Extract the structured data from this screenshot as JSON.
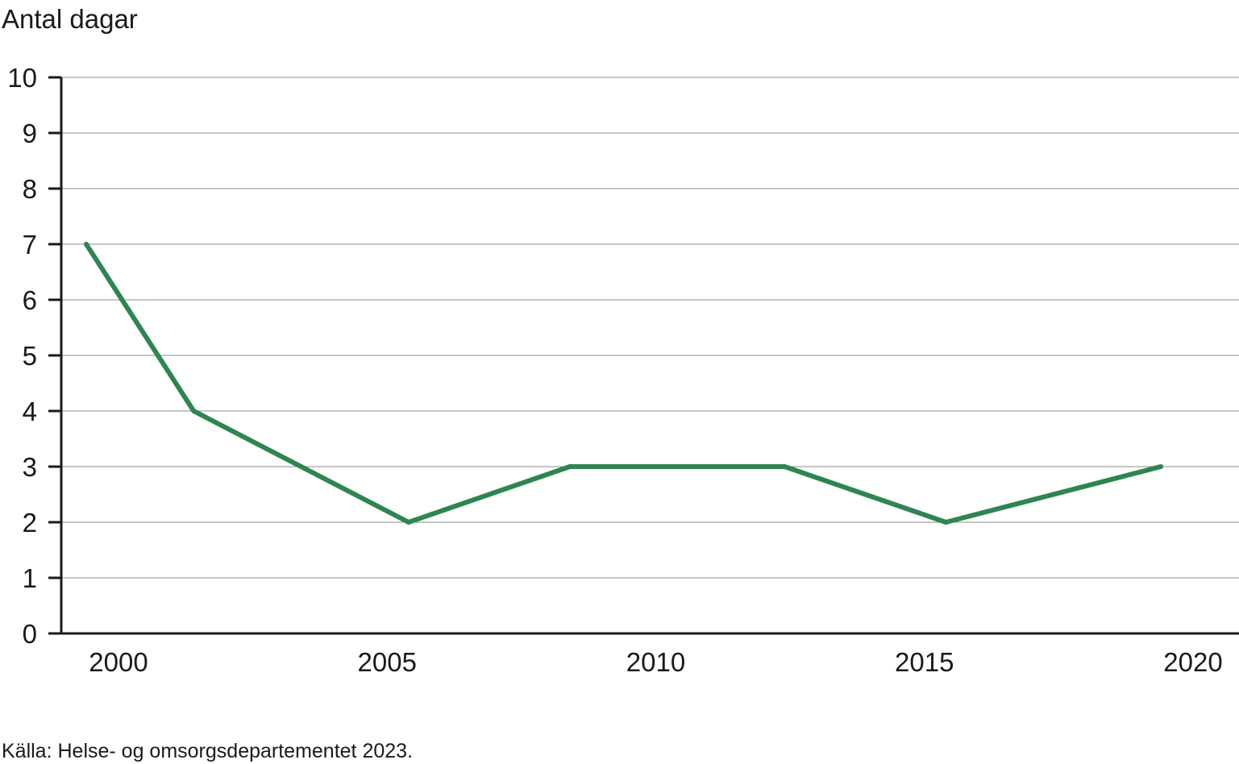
{
  "chart_data": {
    "type": "line",
    "ylabel": "Antal dagar",
    "xlabel": "",
    "ylim": [
      0,
      10
    ],
    "yticks": [
      "0",
      "1",
      "2",
      "3",
      "4",
      "5",
      "6",
      "7",
      "8",
      "9",
      "10"
    ],
    "xlim": [
      1999.5,
      2020.5
    ],
    "xticks": [
      "2000",
      "2005",
      "2010",
      "2015",
      "2020"
    ],
    "grid": true,
    "series": [
      {
        "color": "#2e8552",
        "x": [
          2000,
          2002,
          2006,
          2009,
          2013,
          2016,
          2020
        ],
        "values": [
          7,
          4,
          2,
          3,
          3,
          2,
          3
        ]
      }
    ],
    "source": "Källa: Helse- og omsorgsdepartementet 2023."
  }
}
